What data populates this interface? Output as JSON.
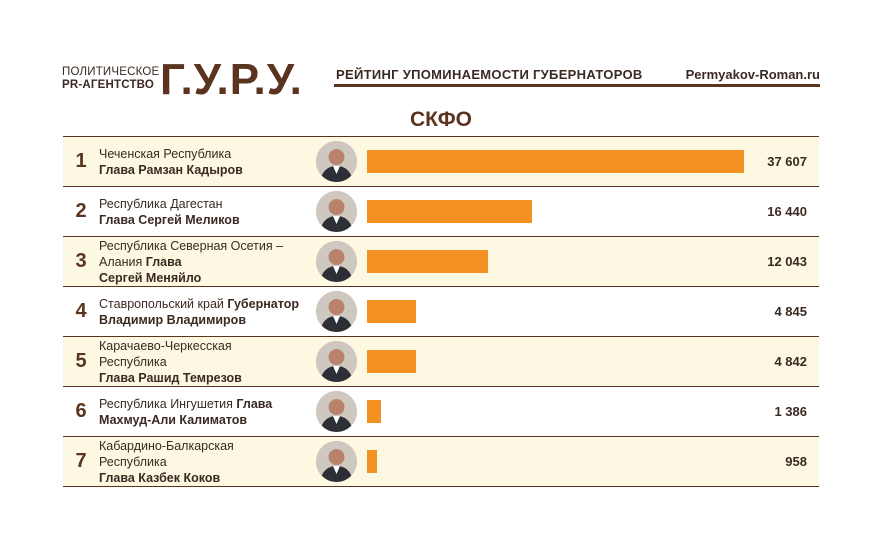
{
  "header": {
    "agency_line1": "ПОЛИТИЧЕСКОЕ",
    "agency_line2": "PR-АГЕНТСТВО",
    "logo": "Г.У.Р.У.",
    "rating_title": "РЕЙТИНГ УПОМИНАЕМОСТИ ГУБЕРНАТОРОВ",
    "site": "Permyakov-Roman.ru"
  },
  "colors": {
    "bar": "#f39223",
    "accent": "#5b3420",
    "row_alt": "#fcf8e2"
  },
  "chart_data": {
    "type": "bar",
    "orientation": "horizontal",
    "title": "СКФО",
    "max": 37607,
    "rows": [
      {
        "rank": "1",
        "region": "Чеченская Республика",
        "head": "Глава Рамзан Кадыров",
        "value": 37607,
        "value_label": "37 607"
      },
      {
        "rank": "2",
        "region": "Республика Дагестан",
        "head": "Глава Сергей Меликов",
        "value": 16440,
        "value_label": "16 440"
      },
      {
        "rank": "3",
        "region": "Республика Северная Осетия – Алания",
        "head_inline": "Глава",
        "head": "Сергей Меняйло",
        "value": 12043,
        "value_label": "12 043"
      },
      {
        "rank": "4",
        "region": "Ставропольский край",
        "head_inline": "Губернатор",
        "head": "Владимир Владимиров",
        "value": 4845,
        "value_label": "4 845"
      },
      {
        "rank": "5",
        "region": "Карачаево-Черкесская Республика",
        "head": "Глава Рашид Темрезов",
        "value": 4842,
        "value_label": "4 842"
      },
      {
        "rank": "6",
        "region": "Республика Ингушетия",
        "head_inline": "Глава",
        "head": "Махмуд-Али Калиматов",
        "value": 1386,
        "value_label": "1 386"
      },
      {
        "rank": "7",
        "region": "Кабардино-Балкарская Республика",
        "head": "Глава Казбек Коков",
        "value": 958,
        "value_label": "958"
      }
    ]
  }
}
